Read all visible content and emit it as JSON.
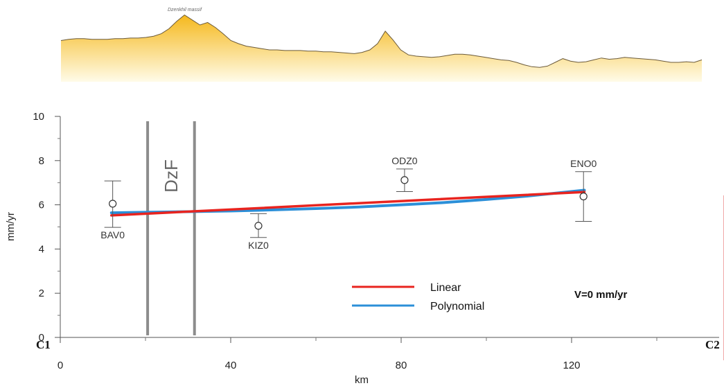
{
  "profile": {
    "label": "Dzenkhil massif",
    "fill_top": "#f5b81c",
    "fill_bottom": "#fffbe8",
    "line_color": "#6b5a3a",
    "relative_heights": [
      0.55,
      0.57,
      0.58,
      0.58,
      0.57,
      0.57,
      0.57,
      0.58,
      0.58,
      0.59,
      0.59,
      0.6,
      0.62,
      0.66,
      0.74,
      0.86,
      0.96,
      0.88,
      0.8,
      0.84,
      0.76,
      0.66,
      0.55,
      0.5,
      0.46,
      0.44,
      0.42,
      0.4,
      0.4,
      0.39,
      0.39,
      0.39,
      0.38,
      0.38,
      0.37,
      0.37,
      0.36,
      0.35,
      0.34,
      0.36,
      0.4,
      0.5,
      0.7,
      0.56,
      0.4,
      0.32,
      0.3,
      0.29,
      0.28,
      0.29,
      0.31,
      0.33,
      0.33,
      0.32,
      0.3,
      0.28,
      0.26,
      0.24,
      0.23,
      0.2,
      0.16,
      0.13,
      0.12,
      0.14,
      0.2,
      0.26,
      0.22,
      0.2,
      0.21,
      0.24,
      0.27,
      0.25,
      0.26,
      0.28,
      0.27,
      0.26,
      0.25,
      0.24,
      0.22,
      0.2,
      0.2,
      0.21,
      0.2,
      0.24
    ]
  },
  "chart_data": {
    "type": "line",
    "xlabel": "km",
    "ylabel": "mm/yr",
    "xlim": [
      0,
      150
    ],
    "ylim": [
      0,
      10
    ],
    "x_ticks": [
      0,
      40,
      80,
      120
    ],
    "x_minor_ticks": [
      20,
      60,
      100,
      140
    ],
    "y_ticks": [
      0,
      2,
      4,
      6,
      8,
      10
    ],
    "grid": false,
    "stations": [
      {
        "name": "BAV0",
        "x": 12.3,
        "y": 6.05,
        "err_low": 4.98,
        "err_high": 7.08
      },
      {
        "name": "KIZ0",
        "x": 46.5,
        "y": 5.05,
        "err_low": 4.52,
        "err_high": 5.6
      },
      {
        "name": "ODZ0",
        "x": 80.8,
        "y": 7.12,
        "err_low": 6.6,
        "err_high": 7.62
      },
      {
        "name": "ENO0",
        "x": 122.8,
        "y": 6.38,
        "err_low": 5.25,
        "err_high": 7.5
      }
    ],
    "series": [
      {
        "name": "Linear",
        "color": "#e8241f",
        "x": [
          12,
          123
        ],
        "y": [
          5.52,
          6.58
        ]
      },
      {
        "name": "Polynomial",
        "color": "#2b8fd8",
        "x": [
          12,
          20,
          30,
          40,
          50,
          60,
          70,
          80,
          90,
          100,
          110,
          123
        ],
        "y": [
          5.64,
          5.66,
          5.69,
          5.72,
          5.77,
          5.83,
          5.9,
          6.0,
          6.1,
          6.24,
          6.4,
          6.66
        ]
      }
    ],
    "fault_lines": [
      {
        "label": "DzF",
        "x": [
          20.5,
          31.5
        ]
      }
    ],
    "annotation": "V=0 mm/yr",
    "endpoints": {
      "left": "C1",
      "right": "C2"
    }
  }
}
